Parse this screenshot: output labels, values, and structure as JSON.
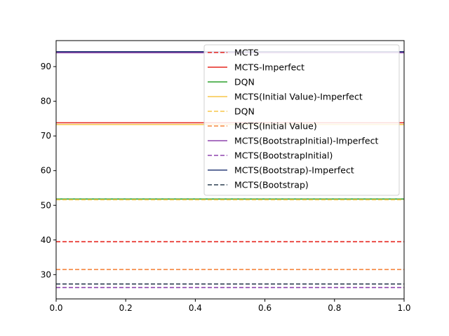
{
  "chart_data": {
    "type": "line",
    "title": "",
    "xlabel": "",
    "ylabel": "",
    "xlim": [
      0.0,
      1.0
    ],
    "ylim": [
      23.0,
      97.5
    ],
    "x_ticks": [
      "0.0",
      "0.2",
      "0.4",
      "0.6",
      "0.8",
      "1.0"
    ],
    "y_ticks": [
      "30",
      "40",
      "50",
      "60",
      "70",
      "80",
      "90"
    ],
    "grid": false,
    "legend_position": "top-right",
    "series": [
      {
        "name": "MCTS",
        "x": [
          0.0,
          1.0
        ],
        "values": [
          39.5,
          39.5
        ],
        "color": "#e6261f",
        "dash": "dashed"
      },
      {
        "name": "MCTS-Imperfect",
        "x": [
          0.0,
          1.0
        ],
        "values": [
          73.8,
          73.8
        ],
        "color": "#e6261f",
        "dash": "solid"
      },
      {
        "name": "DQN",
        "x": [
          0.0,
          1.0
        ],
        "values": [
          51.8,
          51.8
        ],
        "color": "#2ca02c",
        "dash": "solid"
      },
      {
        "name": "MCTS(Initial Value)-Imperfect",
        "x": [
          0.0,
          1.0
        ],
        "values": [
          73.3,
          73.3
        ],
        "color": "#f7c548",
        "dash": "solid"
      },
      {
        "name": "DQN",
        "x": [
          0.0,
          1.0
        ],
        "values": [
          51.6,
          51.6
        ],
        "color": "#f7c548",
        "dash": "dashed"
      },
      {
        "name": "MCTS(Initial Value)",
        "x": [
          0.0,
          1.0
        ],
        "values": [
          31.5,
          31.5
        ],
        "color": "#f5853f",
        "dash": "dashed"
      },
      {
        "name": "MCTS(BootstrapInitial)-Imperfect",
        "x": [
          0.0,
          1.0
        ],
        "values": [
          94.0,
          94.0
        ],
        "color": "#8e44ad",
        "dash": "solid"
      },
      {
        "name": "MCTS(BootstrapInitial)",
        "x": [
          0.0,
          1.0
        ],
        "values": [
          26.3,
          26.3
        ],
        "color": "#8e44ad",
        "dash": "dashed"
      },
      {
        "name": "MCTS(Bootstrap)-Imperfect",
        "x": [
          0.0,
          1.0
        ],
        "values": [
          94.3,
          94.3
        ],
        "color": "#2c3e7a",
        "dash": "solid"
      },
      {
        "name": "MCTS(Bootstrap)",
        "x": [
          0.0,
          1.0
        ],
        "values": [
          27.3,
          27.3
        ],
        "color": "#2c3e50",
        "dash": "dashed"
      }
    ]
  }
}
